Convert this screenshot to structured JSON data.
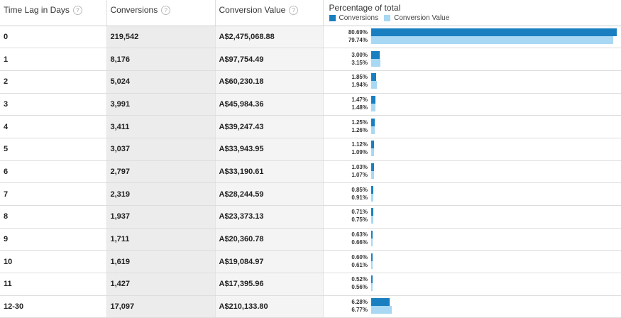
{
  "headers": {
    "time_lag": "Time Lag in Days",
    "conversions": "Conversions",
    "conversion_value": "Conversion Value",
    "percentage": "Percentage of total",
    "help_glyph": "?"
  },
  "legend": {
    "conversions": "Conversions",
    "conversion_value": "Conversion Value"
  },
  "colors": {
    "conversions": "#1a7fc1",
    "conversion_value": "#a8d8f4"
  },
  "rows": [
    {
      "lag": "0",
      "conversions": "219,542",
      "value": "A$2,475,068.88",
      "pct_conv": "80.69%",
      "pct_val": "79.74%",
      "conv_pct": 80.69,
      "val_pct": 79.74
    },
    {
      "lag": "1",
      "conversions": "8,176",
      "value": "A$97,754.49",
      "pct_conv": "3.00%",
      "pct_val": "3.15%",
      "conv_pct": 3.0,
      "val_pct": 3.15
    },
    {
      "lag": "2",
      "conversions": "5,024",
      "value": "A$60,230.18",
      "pct_conv": "1.85%",
      "pct_val": "1.94%",
      "conv_pct": 1.85,
      "val_pct": 1.94
    },
    {
      "lag": "3",
      "conversions": "3,991",
      "value": "A$45,984.36",
      "pct_conv": "1.47%",
      "pct_val": "1.48%",
      "conv_pct": 1.47,
      "val_pct": 1.48
    },
    {
      "lag": "4",
      "conversions": "3,411",
      "value": "A$39,247.43",
      "pct_conv": "1.25%",
      "pct_val": "1.26%",
      "conv_pct": 1.25,
      "val_pct": 1.26
    },
    {
      "lag": "5",
      "conversions": "3,037",
      "value": "A$33,943.95",
      "pct_conv": "1.12%",
      "pct_val": "1.09%",
      "conv_pct": 1.12,
      "val_pct": 1.09
    },
    {
      "lag": "6",
      "conversions": "2,797",
      "value": "A$33,190.61",
      "pct_conv": "1.03%",
      "pct_val": "1.07%",
      "conv_pct": 1.03,
      "val_pct": 1.07
    },
    {
      "lag": "7",
      "conversions": "2,319",
      "value": "A$28,244.59",
      "pct_conv": "0.85%",
      "pct_val": "0.91%",
      "conv_pct": 0.85,
      "val_pct": 0.91
    },
    {
      "lag": "8",
      "conversions": "1,937",
      "value": "A$23,373.13",
      "pct_conv": "0.71%",
      "pct_val": "0.75%",
      "conv_pct": 0.71,
      "val_pct": 0.75
    },
    {
      "lag": "9",
      "conversions": "1,711",
      "value": "A$20,360.78",
      "pct_conv": "0.63%",
      "pct_val": "0.66%",
      "conv_pct": 0.63,
      "val_pct": 0.66
    },
    {
      "lag": "10",
      "conversions": "1,619",
      "value": "A$19,084.97",
      "pct_conv": "0.60%",
      "pct_val": "0.61%",
      "conv_pct": 0.6,
      "val_pct": 0.61
    },
    {
      "lag": "11",
      "conversions": "1,427",
      "value": "A$17,395.96",
      "pct_conv": "0.52%",
      "pct_val": "0.56%",
      "conv_pct": 0.52,
      "val_pct": 0.56
    },
    {
      "lag": "12-30",
      "conversions": "17,097",
      "value": "A$210,133.80",
      "pct_conv": "6.28%",
      "pct_val": "6.77%",
      "conv_pct": 6.28,
      "val_pct": 6.77
    }
  ]
}
